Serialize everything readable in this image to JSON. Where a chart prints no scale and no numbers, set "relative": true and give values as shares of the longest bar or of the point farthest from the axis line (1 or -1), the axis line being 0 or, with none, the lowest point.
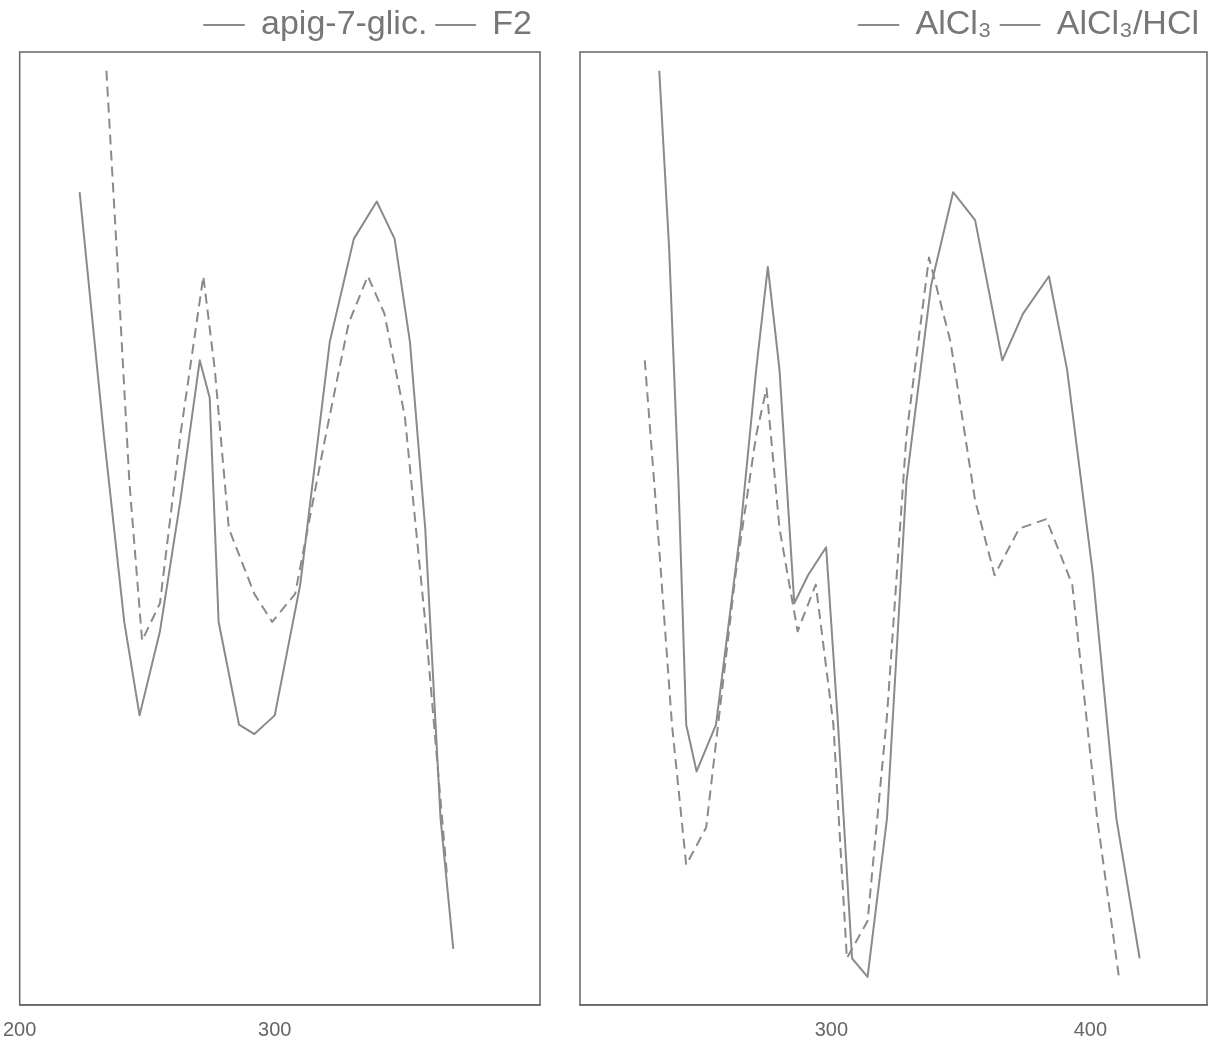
{
  "chart_data": [
    {
      "type": "line",
      "relative": true,
      "xlim": [
        200,
        404
      ],
      "xticks": [
        200,
        300
      ],
      "tick_labels": "x",
      "grid": false,
      "legend": "top right",
      "marker": "none",
      "series": [
        {
          "name": "apig-7-glic.",
          "color": "#8a8a8a",
          "line_style": "solid",
          "x": [
            223.5,
            233,
            241,
            247,
            255,
            263,
            270.6,
            274.5,
            278,
            286,
            292,
            300,
            310,
            321.6,
            331,
            340,
            347,
            353,
            359,
            365,
            370
          ],
          "values": [
            0.87,
            0.61,
            0.41,
            0.31,
            0.4,
            0.54,
            0.69,
            0.65,
            0.41,
            0.3,
            0.29,
            0.31,
            0.45,
            0.71,
            0.82,
            0.86,
            0.82,
            0.71,
            0.51,
            0.2,
            0.06
          ]
        },
        {
          "name": "F2",
          "color": "#8a8a8a",
          "line_style": "dashed",
          "x": [
            234,
            238,
            243,
            248,
            255,
            263,
            272,
            276.5,
            282,
            292,
            299,
            308,
            320,
            329,
            336.5,
            343,
            351,
            359,
            367.5
          ],
          "values": [
            1.0,
            0.81,
            0.56,
            0.39,
            0.43,
            0.61,
            0.78,
            0.68,
            0.51,
            0.44,
            0.41,
            0.44,
            0.61,
            0.73,
            0.78,
            0.74,
            0.63,
            0.41,
            0.14
          ]
        }
      ]
    },
    {
      "type": "line",
      "relative": true,
      "xlim": [
        203,
        445
      ],
      "xticks": [
        300,
        400
      ],
      "tick_labels": "x",
      "grid": false,
      "legend": "top right",
      "marker": "none",
      "series": [
        {
          "name": "AlCl₃",
          "color": "#8a8a8a",
          "line_style": "solid",
          "x": [
            233.6,
            237.4,
            241,
            244,
            248,
            255.5,
            265,
            271,
            275.5,
            280,
            285.7,
            291,
            298,
            302.6,
            308,
            314,
            321.5,
            329,
            338.5,
            347,
            355.5,
            366,
            374,
            384,
            391,
            401,
            410,
            419
          ],
          "values": [
            1.0,
            0.81,
            0.56,
            0.3,
            0.25,
            0.3,
            0.51,
            0.68,
            0.79,
            0.68,
            0.43,
            0.46,
            0.49,
            0.3,
            0.05,
            0.03,
            0.2,
            0.56,
            0.77,
            0.87,
            0.84,
            0.69,
            0.74,
            0.78,
            0.68,
            0.46,
            0.2,
            0.05
          ]
        },
        {
          "name": "AlCl₃/HCl",
          "color": "#8a8a8a",
          "line_style": "dashed",
          "x": [
            228,
            233,
            238.5,
            244,
            251.7,
            263,
            271,
            275,
            280,
            287,
            294,
            300.8,
            306,
            314,
            321.5,
            329,
            337.7,
            346,
            355.5,
            363,
            372.5,
            383,
            393,
            402.6,
            411
          ],
          "values": [
            0.69,
            0.51,
            0.3,
            0.15,
            0.19,
            0.46,
            0.61,
            0.66,
            0.51,
            0.4,
            0.45,
            0.3,
            0.05,
            0.09,
            0.31,
            0.61,
            0.8,
            0.71,
            0.54,
            0.46,
            0.51,
            0.52,
            0.45,
            0.2,
            0.03
          ]
        }
      ]
    }
  ]
}
